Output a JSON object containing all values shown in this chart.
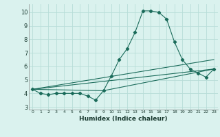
{
  "xlabel": "Humidex (Indice chaleur)",
  "background_color": "#daf2ee",
  "grid_color": "#b8ddd8",
  "line_color": "#1a6b5a",
  "xlim": [
    -0.5,
    23.5
  ],
  "ylim": [
    2.8,
    10.6
  ],
  "yticks": [
    3,
    4,
    5,
    6,
    7,
    8,
    9,
    10
  ],
  "xticks": [
    0,
    1,
    2,
    3,
    4,
    5,
    6,
    7,
    8,
    9,
    10,
    11,
    12,
    13,
    14,
    15,
    16,
    17,
    18,
    19,
    20,
    21,
    22,
    23
  ],
  "xtick_labels": [
    "0",
    "1",
    "2",
    "3",
    "4",
    "5",
    "6",
    "7",
    "8",
    "9",
    "10",
    "11",
    "12",
    "13",
    "14",
    "15",
    "16",
    "17",
    "18",
    "19",
    "20",
    "21",
    "22",
    "23"
  ],
  "series1_x": [
    0,
    1,
    2,
    3,
    4,
    5,
    6,
    7,
    8,
    9,
    10,
    11,
    12,
    13,
    14,
    15,
    16,
    17,
    18,
    19,
    20,
    21,
    22,
    23
  ],
  "series1_y": [
    4.3,
    4.0,
    3.9,
    4.0,
    4.0,
    4.0,
    4.0,
    3.8,
    3.5,
    4.2,
    5.3,
    6.5,
    7.3,
    8.5,
    10.1,
    10.1,
    10.0,
    9.5,
    7.8,
    6.5,
    5.8,
    5.5,
    5.2,
    5.8
  ],
  "line2_x": [
    0,
    23
  ],
  "line2_y": [
    4.3,
    5.8
  ],
  "line3_x": [
    0,
    23
  ],
  "line3_y": [
    4.3,
    6.5
  ],
  "line4_x": [
    0,
    9,
    23
  ],
  "line4_y": [
    4.3,
    4.2,
    5.8
  ]
}
